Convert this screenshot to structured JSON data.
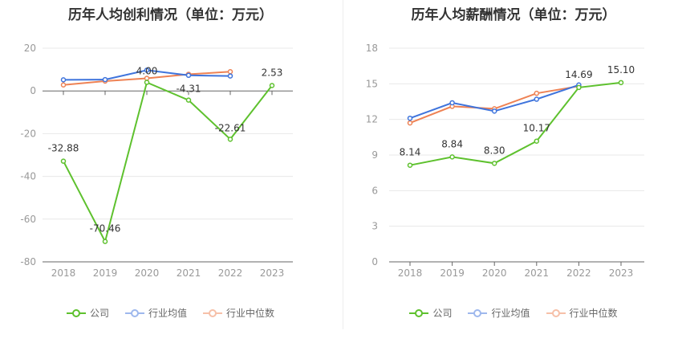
{
  "chart_data": [
    {
      "type": "line",
      "title": "历年人均创利情况（单位：万元）",
      "categories": [
        "2018",
        "2019",
        "2020",
        "2021",
        "2022",
        "2023"
      ],
      "ylim": [
        -80,
        20
      ],
      "yticks": [
        20,
        0,
        -20,
        -40,
        -60,
        -80
      ],
      "grid": true,
      "legend_position": "bottom",
      "series": [
        {
          "name": "公司",
          "color": "#5ec12e",
          "values": [
            -32.88,
            -70.46,
            4.0,
            -4.31,
            -22.61,
            2.53
          ],
          "labels": [
            "-32.88",
            "-70.46",
            "4.00",
            "-4.31",
            "-22.61",
            "2.53"
          ]
        },
        {
          "name": "行业均值",
          "color": "#3f74dc",
          "values": [
            5.2,
            5.3,
            9.7,
            7.3,
            7.0,
            null
          ]
        },
        {
          "name": "行业中位数",
          "color": "#ee8254",
          "values": [
            2.8,
            4.6,
            5.9,
            7.8,
            9.0,
            null
          ]
        }
      ]
    },
    {
      "type": "line",
      "title": "历年人均薪酬情况（单位：万元）",
      "categories": [
        "2018",
        "2019",
        "2020",
        "2021",
        "2022",
        "2023"
      ],
      "ylim": [
        0,
        18
      ],
      "yticks": [
        18,
        15,
        12,
        9,
        6,
        3,
        0
      ],
      "grid": true,
      "legend_position": "bottom",
      "series": [
        {
          "name": "公司",
          "color": "#5ec12e",
          "values": [
            8.14,
            8.84,
            8.3,
            10.17,
            14.69,
            15.1
          ],
          "labels": [
            "8.14",
            "8.84",
            "8.30",
            "10.17",
            "14.69",
            "15.10"
          ]
        },
        {
          "name": "行业均值",
          "color": "#3f74dc",
          "values": [
            12.1,
            13.4,
            12.7,
            13.7,
            14.9,
            null
          ]
        },
        {
          "name": "行业中位数",
          "color": "#ee8254",
          "values": [
            11.7,
            13.1,
            12.9,
            14.2,
            14.8,
            null
          ]
        }
      ]
    }
  ]
}
